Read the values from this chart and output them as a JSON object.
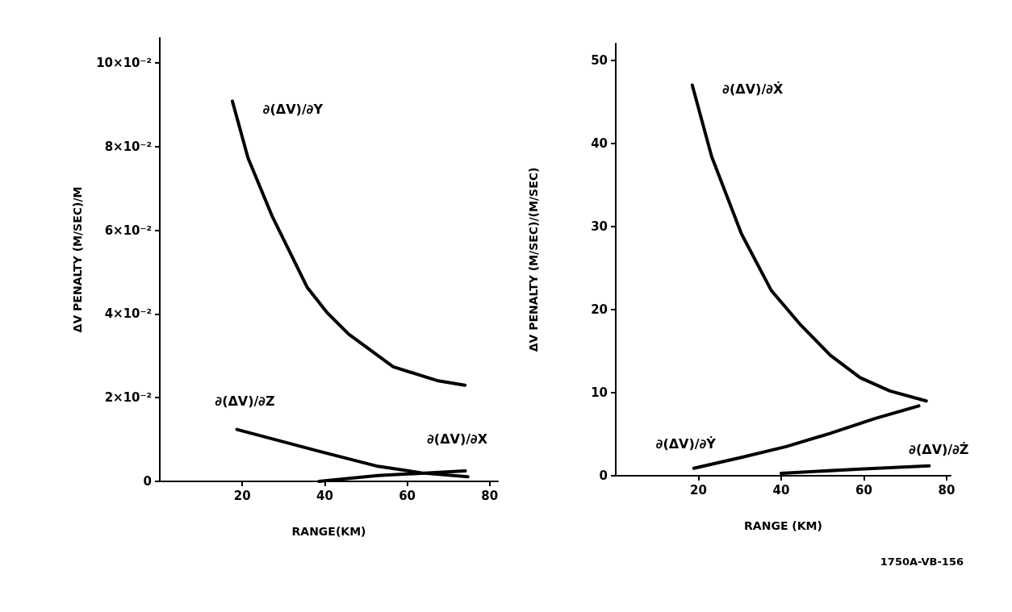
{
  "chart_data": [
    {
      "type": "line",
      "xlabel": "RANGE(KM)",
      "ylabel": "ΔV PENALTY (M/SEC)/M",
      "xlim": [
        0,
        82
      ],
      "xticks": [
        20,
        40,
        60,
        80
      ],
      "ylim": [
        0,
        0.106
      ],
      "yticks": [
        {
          "value": 0,
          "label": "0"
        },
        {
          "value": 0.02,
          "label": "2×10⁻²"
        },
        {
          "value": 0.04,
          "label": "4×10⁻²"
        },
        {
          "value": 0.06,
          "label": "6×10⁻²"
        },
        {
          "value": 0.08,
          "label": "8×10⁻²"
        },
        {
          "value": 0.1,
          "label": "10×10⁻²"
        }
      ],
      "grid": false,
      "legend": false,
      "marker": "none",
      "line_style": "solid",
      "series": [
        {
          "name": "∂(ΔV)/∂Y",
          "color": "#000000",
          "x": [
            17.6,
            21.4,
            27.2,
            35.8,
            40.7,
            45.8,
            56.6,
            67.2,
            74
          ],
          "values": [
            0.0909,
            0.0773,
            0.0635,
            0.0463,
            0.0402,
            0.0352,
            0.0274,
            0.0241,
            0.023
          ]
        },
        {
          "name": "∂(ΔV)/∂Z",
          "color": "#000000",
          "x": [
            18.7,
            38.6,
            52.9,
            63.7,
            74.7
          ],
          "values": [
            0.0124,
            0.0072,
            0.0036,
            0.002,
            0.0011
          ]
        },
        {
          "name": "∂(ΔV)/∂X",
          "color": "#000000",
          "x": [
            38.6,
            52.9,
            74.1
          ],
          "values": [
            0,
            0.0014,
            0.0025
          ]
        }
      ]
    },
    {
      "type": "line",
      "xlabel": "RANGE (KM)",
      "ylabel": "ΔV PENALTY (M/SEC)/(M/SEC)",
      "xlim": [
        0,
        81
      ],
      "xticks": [
        20,
        40,
        60,
        80
      ],
      "ylim": [
        0,
        52
      ],
      "yticks": [
        0,
        10,
        20,
        30,
        40,
        50
      ],
      "grid": false,
      "legend": false,
      "marker": "none",
      "line_style": "solid",
      "annotations": [
        "1750A-VB-156"
      ],
      "series": [
        {
          "name": "∂(ΔV)/∂Ẋ",
          "color": "#000000",
          "x": [
            18.5,
            23.2,
            30.4,
            37.6,
            44.8,
            51.9,
            59.1,
            66.3,
            75.1
          ],
          "values": [
            47.0,
            38.4,
            29.1,
            22.3,
            18.1,
            14.5,
            11.8,
            10.2,
            9.0
          ]
        },
        {
          "name": "∂(ΔV)/∂Ẏ",
          "color": "#000000",
          "x": [
            18.9,
            30.4,
            41.2,
            51.9,
            62.8,
            73.3
          ],
          "values": [
            0.9,
            2.2,
            3.5,
            5.1,
            6.9,
            8.4
          ]
        },
        {
          "name": "∂(ΔV)/∂Ż",
          "color": "#000000",
          "x": [
            40,
            59.1,
            75.8
          ],
          "values": [
            0.3,
            0.8,
            1.2
          ]
        }
      ]
    }
  ]
}
